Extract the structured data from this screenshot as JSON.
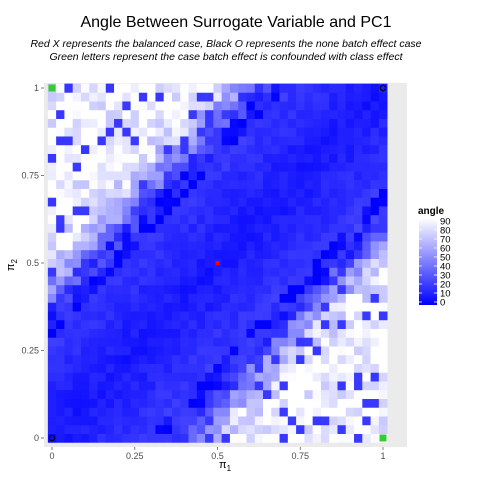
{
  "chart_data": {
    "type": "heatmap",
    "title": "Angle Between Surrogate Variable and PC1",
    "subtitle_lines": [
      "Red X represents the balanced case, Black O represents the none batch effect case",
      "Green letters represent the case batch effect is confounded with class effect"
    ],
    "xlabel": "π",
    "xlabel_sub": "1",
    "ylabel": "π",
    "ylabel_sub": "2",
    "x_ticks": [
      "0",
      "0.25",
      "0.5",
      "0.75",
      "1"
    ],
    "y_ticks": [
      "0",
      "0.25",
      "0.5",
      "0.75",
      "1"
    ],
    "xlim": [
      0,
      1
    ],
    "ylim": [
      0,
      1
    ],
    "grid_steps": 41,
    "legend": {
      "title": "angle",
      "ticks": [
        "90",
        "80",
        "70",
        "60",
        "50",
        "40",
        "30",
        "20",
        "10",
        "0"
      ],
      "range": [
        0,
        90
      ],
      "low_color": "#0000ff",
      "high_color": "#ffffff"
    },
    "markers": [
      {
        "x": 0.5,
        "y": 0.5,
        "color": "#ff0000",
        "kind": "balanced"
      },
      {
        "x": 0,
        "y": 0,
        "color": "#000000",
        "kind": "no-batch-effect"
      },
      {
        "x": 1,
        "y": 1,
        "color": "#000000",
        "kind": "no-batch-effect"
      },
      {
        "x": 0,
        "y": 1,
        "color": "#33cc33",
        "kind": "confounded"
      },
      {
        "x": 1,
        "y": 0,
        "color": "#33cc33",
        "kind": "confounded"
      }
    ],
    "panel_background": "#ebebeb",
    "grid": true
  }
}
